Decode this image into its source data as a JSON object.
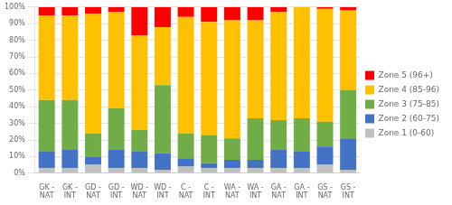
{
  "chart_data": {
    "type": "bar",
    "stacked": true,
    "categories": [
      "GK -\nNAT",
      "GK -\nINT",
      "GD -\nNAT",
      "GD -\nINT",
      "WD -\nNAT",
      "WD -\nINT",
      "C -\nNAT",
      "C -\nINT",
      "WA -\nNAT",
      "WA -\nINT",
      "GA -\nNAT",
      "GA -\nINT",
      "GS -\nNAT",
      "GS -\nINT"
    ],
    "series": [
      {
        "name": "Zone 1 (0-60)",
        "color": "#c0c0c0",
        "values": [
          3,
          3,
          5,
          3,
          3,
          2,
          4,
          3,
          3,
          3,
          3,
          3,
          5,
          2
        ]
      },
      {
        "name": "Zone 2 (60-75)",
        "color": "#4472c4",
        "values": [
          10,
          11,
          5,
          11,
          10,
          10,
          5,
          3,
          5,
          5,
          11,
          10,
          11,
          19
        ]
      },
      {
        "name": "Zone 3 (75-85)",
        "color": "#70ad47",
        "values": [
          31,
          30,
          14,
          25,
          13,
          41,
          15,
          17,
          13,
          25,
          18,
          20,
          15,
          29
        ]
      },
      {
        "name": "Zone 4 (85-96)",
        "color": "#ffc000",
        "values": [
          51,
          51,
          72,
          58,
          57,
          35,
          70,
          68,
          71,
          59,
          65,
          67,
          68,
          48
        ]
      },
      {
        "name": "Zone 5 (96+)",
        "color": "#ff0000",
        "values": [
          5,
          5,
          4,
          3,
          17,
          12,
          6,
          9,
          8,
          8,
          3,
          0,
          1,
          2
        ]
      }
    ],
    "ylim": [
      0,
      100
    ],
    "yticks": [
      {
        "value": 0,
        "label": "0%"
      },
      {
        "value": 10,
        "label": "10%"
      },
      {
        "value": 20,
        "label": "20%"
      },
      {
        "value": 30,
        "label": "30%"
      },
      {
        "value": 40,
        "label": "40%"
      },
      {
        "value": 50,
        "label": "50%"
      },
      {
        "value": 60,
        "label": "60%"
      },
      {
        "value": 70,
        "label": "70%"
      },
      {
        "value": 80,
        "label": "80%"
      },
      {
        "value": 90,
        "label": "90%"
      },
      {
        "value": 100,
        "label": "100%"
      }
    ],
    "grid": true,
    "legend": "right"
  }
}
